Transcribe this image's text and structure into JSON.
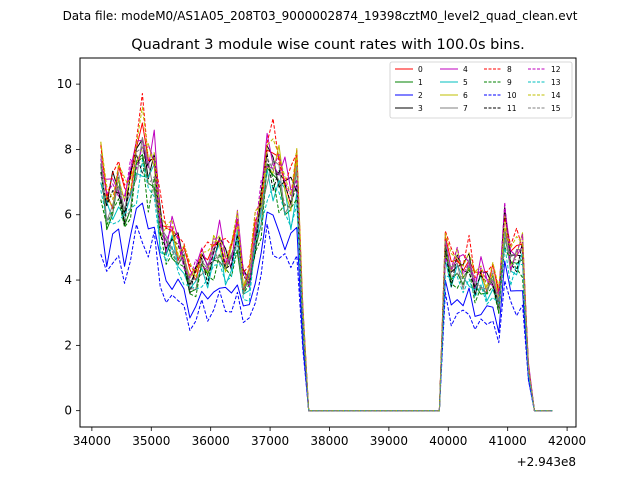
{
  "figure": {
    "suptitle": "Data file: modeM0/AS1A05_208T03_9000002874_19398cztM0_level2_quad_clean.evt"
  },
  "chart_data": {
    "type": "line",
    "title": "Quadrant 3 module wise count rates with 100.0s bins.",
    "xlabel": "",
    "ylabel": "",
    "x_offset_label": "+2.943e8",
    "xlim": [
      33800,
      42150
    ],
    "ylim": [
      -0.5,
      10.8
    ],
    "xticks": [
      34000,
      35000,
      36000,
      37000,
      38000,
      39000,
      40000,
      41000,
      42000
    ],
    "xtick_labels": [
      "34000",
      "35000",
      "36000",
      "37000",
      "38000",
      "39000",
      "40000",
      "41000",
      "42000"
    ],
    "yticks": [
      0,
      2,
      4,
      6,
      8,
      10
    ],
    "ytick_labels": [
      "0",
      "2",
      "4",
      "6",
      "8",
      "10"
    ],
    "legend_position": "upper-right",
    "x": [
      34150,
      34250,
      34350,
      34450,
      34550,
      34650,
      34750,
      34850,
      34950,
      35050,
      35150,
      35250,
      35350,
      35450,
      35550,
      35650,
      35750,
      35850,
      35950,
      36050,
      36150,
      36250,
      36350,
      36450,
      36550,
      36650,
      36750,
      36850,
      36950,
      37050,
      37150,
      37250,
      37350,
      37450,
      37550,
      37650,
      37750,
      37850,
      37950,
      38050,
      38150,
      38250,
      38350,
      38450,
      38550,
      38650,
      38750,
      38850,
      38950,
      39050,
      39150,
      39250,
      39350,
      39450,
      39550,
      39650,
      39750,
      39850,
      39950,
      40050,
      40150,
      40250,
      40350,
      40450,
      40550,
      40650,
      40750,
      40850,
      40950,
      41050,
      41150,
      41250,
      41350,
      41450,
      41550,
      41650,
      41750
    ],
    "base_profile": [
      7.6,
      6.4,
      6.7,
      7.0,
      6.3,
      7.0,
      7.9,
      8.3,
      7.5,
      7.7,
      5.8,
      5.2,
      5.4,
      5.0,
      4.7,
      4.0,
      4.2,
      4.7,
      4.4,
      4.9,
      5.2,
      4.6,
      4.7,
      5.6,
      4.0,
      4.1,
      5.4,
      6.4,
      7.9,
      7.6,
      7.4,
      6.9,
      6.6,
      7.3,
      3.0,
      0.0,
      0.0,
      0.0,
      0.0,
      0.0,
      0.0,
      0.0,
      0.0,
      0.0,
      0.0,
      0.0,
      0.0,
      0.0,
      0.0,
      0.0,
      0.0,
      0.0,
      0.0,
      0.0,
      0.0,
      0.0,
      0.0,
      0.0,
      5.1,
      4.3,
      4.6,
      4.3,
      4.6,
      3.9,
      4.2,
      3.9,
      4.1,
      3.4,
      5.9,
      4.7,
      4.8,
      5.0,
      1.3,
      0.0,
      0.0,
      0.0,
      0.0
    ],
    "series": [
      {
        "name": "0",
        "color": "#ff0000",
        "style": "solid",
        "scale": 1.02,
        "phase": 0
      },
      {
        "name": "1",
        "color": "#008000",
        "style": "solid",
        "scale": 0.93,
        "phase": 1
      },
      {
        "name": "2",
        "color": "#0000ff",
        "style": "solid",
        "scale": 0.76,
        "phase": 2
      },
      {
        "name": "3",
        "color": "#000000",
        "style": "solid",
        "scale": 1.0,
        "phase": 3
      },
      {
        "name": "4",
        "color": "#bf00bf",
        "style": "solid",
        "scale": 1.03,
        "phase": 4
      },
      {
        "name": "5",
        "color": "#00bfbf",
        "style": "solid",
        "scale": 0.92,
        "phase": 5
      },
      {
        "name": "6",
        "color": "#bfbf00",
        "style": "solid",
        "scale": 1.0,
        "phase": 6
      },
      {
        "name": "7",
        "color": "#808080",
        "style": "solid",
        "scale": 0.96,
        "phase": 7
      },
      {
        "name": "8",
        "color": "#ff0000",
        "style": "dashed",
        "scale": 1.07,
        "phase": 8
      },
      {
        "name": "9",
        "color": "#008000",
        "style": "dashed",
        "scale": 0.9,
        "phase": 9
      },
      {
        "name": "10",
        "color": "#0000ff",
        "style": "dashed",
        "scale": 0.66,
        "phase": 10
      },
      {
        "name": "11",
        "color": "#000000",
        "style": "dashed",
        "scale": 0.97,
        "phase": 11
      },
      {
        "name": "12",
        "color": "#bf00bf",
        "style": "dashed",
        "scale": 1.01,
        "phase": 12
      },
      {
        "name": "13",
        "color": "#00bfbf",
        "style": "dashed",
        "scale": 0.88,
        "phase": 13
      },
      {
        "name": "14",
        "color": "#bfbf00",
        "style": "dashed",
        "scale": 1.05,
        "phase": 14
      },
      {
        "name": "15",
        "color": "#808080",
        "style": "dashed",
        "scale": 0.95,
        "phase": 15
      }
    ]
  }
}
